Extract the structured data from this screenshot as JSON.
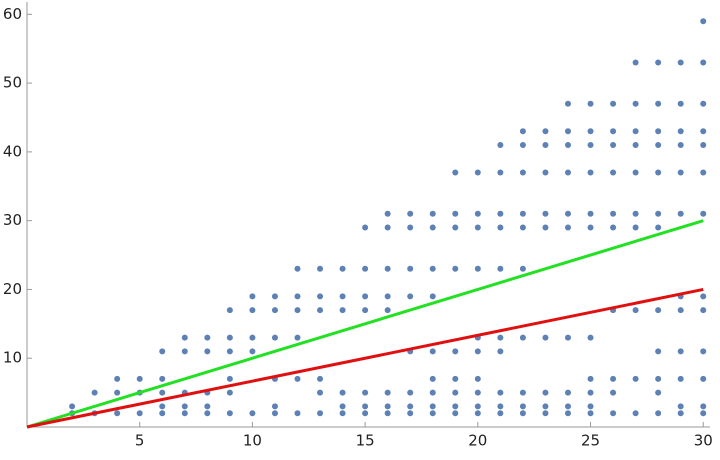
{
  "chart_data": {
    "type": "scatter",
    "xlim": [
      0,
      30.3
    ],
    "ylim": [
      0,
      61.5
    ],
    "xticks": [
      5,
      10,
      15,
      20,
      25,
      30
    ],
    "yticks": [
      10,
      20,
      30,
      40,
      50,
      60
    ],
    "series": [
      {
        "mode": "markers",
        "color": "#5e81b5",
        "x": [
          2,
          2,
          3,
          3,
          4,
          4,
          4,
          5,
          5,
          5,
          6,
          6,
          6,
          6,
          6,
          7,
          7,
          7,
          7,
          7,
          8,
          8,
          8,
          8,
          8,
          9,
          9,
          9,
          9,
          9,
          9,
          10,
          10,
          10,
          10,
          10,
          11,
          11,
          11,
          11,
          11,
          11,
          12,
          12,
          12,
          12,
          12,
          12,
          13,
          13,
          13,
          13,
          13,
          13,
          14,
          14,
          14,
          14,
          14,
          14,
          15,
          15,
          15,
          15,
          15,
          15,
          15,
          16,
          16,
          16,
          16,
          16,
          16,
          16,
          16,
          17,
          17,
          17,
          17,
          17,
          17,
          17,
          17,
          18,
          18,
          18,
          18,
          18,
          18,
          18,
          18,
          18,
          19,
          19,
          19,
          19,
          19,
          19,
          19,
          19,
          19,
          20,
          20,
          20,
          20,
          20,
          20,
          20,
          20,
          20,
          20,
          21,
          21,
          21,
          21,
          21,
          21,
          21,
          21,
          21,
          21,
          22,
          22,
          22,
          22,
          22,
          22,
          22,
          22,
          22,
          22,
          23,
          23,
          23,
          23,
          23,
          23,
          23,
          23,
          23,
          24,
          24,
          24,
          24,
          24,
          24,
          24,
          24,
          24,
          24,
          25,
          25,
          25,
          25,
          25,
          25,
          25,
          25,
          25,
          25,
          25,
          26,
          26,
          26,
          26,
          26,
          26,
          26,
          26,
          26,
          26,
          27,
          27,
          27,
          27,
          27,
          27,
          27,
          27,
          27,
          27,
          28,
          28,
          28,
          28,
          28,
          28,
          28,
          28,
          28,
          28,
          28,
          28,
          29,
          29,
          29,
          29,
          29,
          29,
          29,
          29,
          29,
          29,
          29,
          29,
          30,
          30,
          30,
          30,
          30,
          30,
          30,
          30,
          30,
          30,
          30,
          30,
          30
        ],
        "values": [
          2,
          3,
          2,
          5,
          2,
          5,
          7,
          2,
          5,
          7,
          2,
          3,
          5,
          7,
          11,
          2,
          3,
          5,
          11,
          13,
          2,
          3,
          5,
          11,
          13,
          2,
          5,
          7,
          11,
          13,
          17,
          2,
          11,
          13,
          17,
          19,
          2,
          3,
          7,
          13,
          17,
          19,
          2,
          7,
          13,
          17,
          19,
          23,
          2,
          5,
          7,
          17,
          19,
          23,
          2,
          3,
          5,
          17,
          19,
          23,
          2,
          3,
          5,
          17,
          19,
          23,
          29,
          2,
          3,
          5,
          17,
          19,
          23,
          29,
          31,
          2,
          3,
          5,
          11,
          19,
          23,
          29,
          31,
          2,
          3,
          5,
          7,
          11,
          19,
          23,
          29,
          31,
          2,
          3,
          5,
          7,
          11,
          23,
          29,
          31,
          37,
          2,
          3,
          5,
          7,
          11,
          13,
          23,
          29,
          31,
          37,
          2,
          3,
          5,
          11,
          13,
          23,
          29,
          31,
          37,
          41,
          2,
          3,
          5,
          13,
          23,
          29,
          31,
          37,
          41,
          43,
          2,
          3,
          5,
          13,
          29,
          31,
          37,
          41,
          43,
          2,
          3,
          5,
          13,
          29,
          31,
          37,
          41,
          43,
          47,
          2,
          3,
          5,
          7,
          13,
          29,
          31,
          37,
          41,
          43,
          47,
          2,
          5,
          7,
          17,
          29,
          31,
          37,
          41,
          43,
          47,
          2,
          7,
          17,
          29,
          31,
          37,
          41,
          43,
          47,
          53,
          2,
          5,
          7,
          11,
          17,
          29,
          31,
          37,
          41,
          43,
          47,
          53,
          2,
          3,
          7,
          11,
          17,
          19,
          31,
          37,
          41,
          43,
          47,
          53,
          2,
          3,
          7,
          11,
          17,
          19,
          31,
          37,
          41,
          43,
          47,
          53,
          59
        ]
      },
      {
        "mode": "lines",
        "color": "#22e022",
        "x": [
          0,
          30
        ],
        "values": [
          0,
          30
        ]
      },
      {
        "mode": "lines",
        "color": "#e01010",
        "x": [
          0,
          30
        ],
        "values": [
          0,
          20
        ]
      }
    ]
  }
}
